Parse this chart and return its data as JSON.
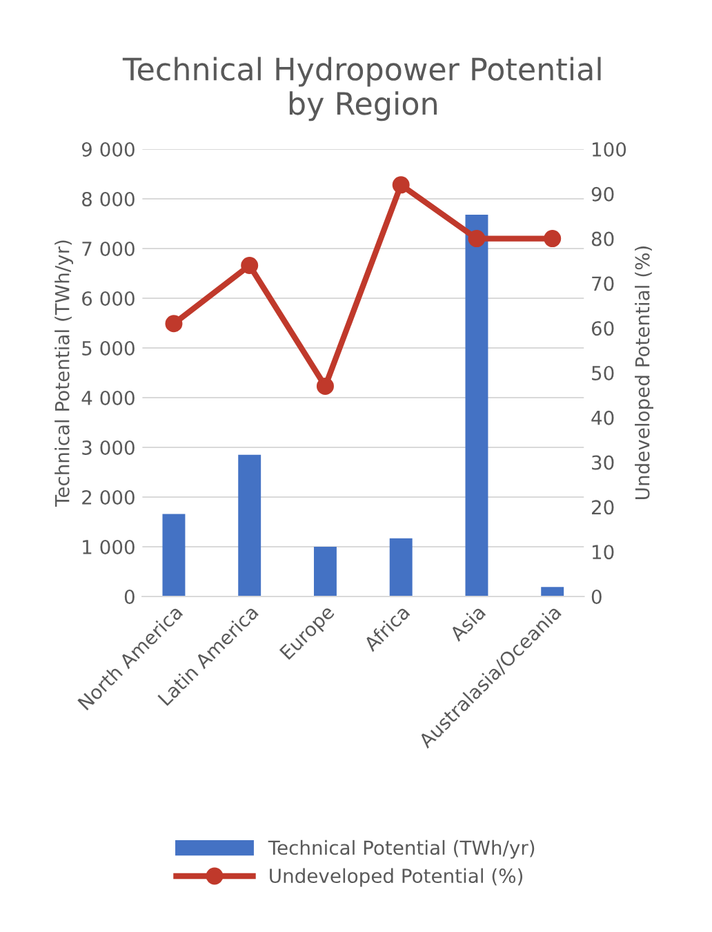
{
  "chart_data": {
    "type": "bar",
    "title": "Technical Hydropower Potential\nby Region",
    "categories": [
      "North America",
      "Latin America",
      "Europe",
      "Africa",
      "Asia",
      "Australasia/Oceania"
    ],
    "series": [
      {
        "name": "Technical Potential (TWh/yr)",
        "color": "#4472c4",
        "values": [
          1660,
          2850,
          1000,
          1170,
          7680,
          190
        ]
      },
      {
        "name": "Undeveloped Potential (%)",
        "type": "line",
        "axis": "y2",
        "color": "#c0392b",
        "marker": "circle",
        "values": [
          61,
          74,
          47,
          92,
          80,
          80
        ]
      }
    ],
    "ylabel": "Technical Potential (TWh/yr)",
    "y2label": "Undeveloped Potential (%)",
    "ylim": [
      0,
      9000
    ],
    "yticks": [
      0,
      {
        "value": 1000,
        "label": "1 000"
      },
      {
        "value": 2000,
        "label": "2 000"
      },
      {
        "value": 3000,
        "label": "3 000"
      },
      {
        "value": 4000,
        "label": "4 000"
      },
      {
        "value": 5000,
        "label": "5 000"
      },
      {
        "value": 6000,
        "label": "6 000"
      },
      {
        "value": 7000,
        "label": "7 000"
      },
      {
        "value": 8000,
        "label": "8 000"
      },
      {
        "value": 9000,
        "label": "9 000"
      }
    ],
    "y2lim": [
      0,
      100
    ],
    "y2ticks": [
      0,
      10,
      20,
      30,
      40,
      50,
      60,
      70,
      80,
      90,
      100
    ],
    "grid": "y",
    "legend": "bottom"
  }
}
